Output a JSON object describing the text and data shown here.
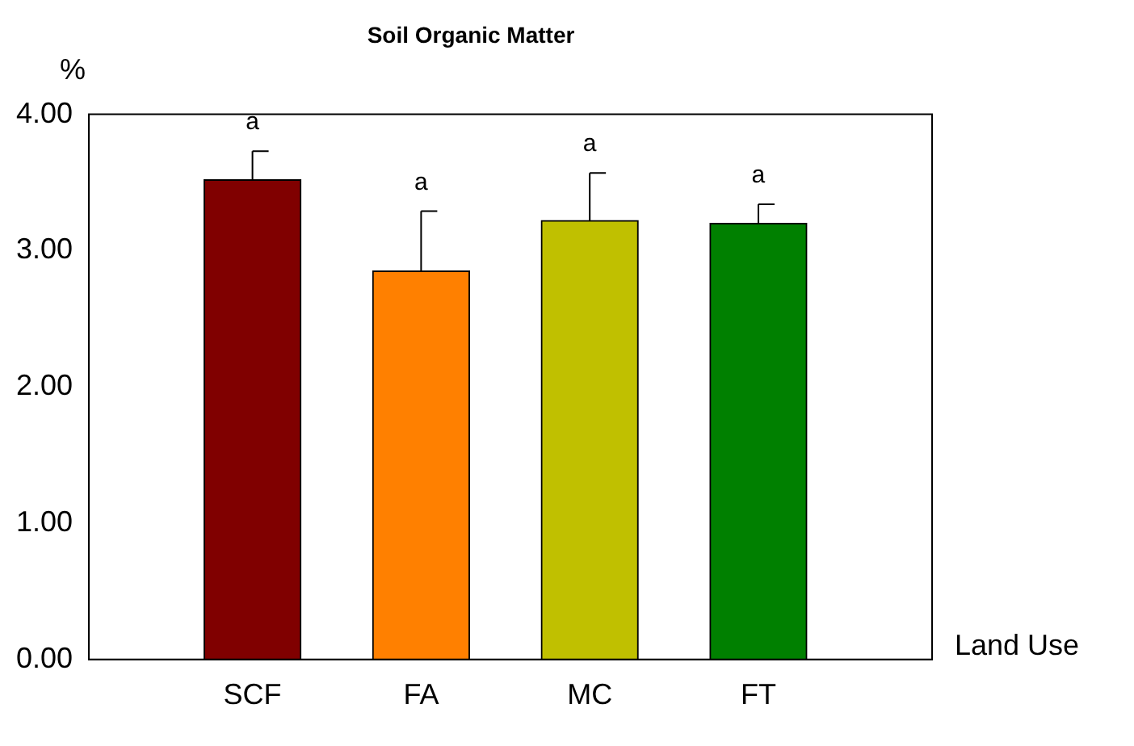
{
  "chart_data": {
    "type": "bar",
    "title": "Soil Organic Matter",
    "xlabel": "Land Use",
    "ylabel": "%",
    "categories": [
      "SCF",
      "FA",
      "MC",
      "FT"
    ],
    "values": [
      3.52,
      2.85,
      3.22,
      3.2
    ],
    "colors": [
      "#800000",
      "#ff8000",
      "#c0c000",
      "#008000"
    ],
    "errors": [
      0.21,
      0.44,
      0.35,
      0.14
    ],
    "ylim": [
      0,
      4
    ],
    "yticks": [
      {
        "value": 0,
        "label": "0.00"
      },
      {
        "value": 1,
        "label": "1.00"
      },
      {
        "value": 2,
        "label": "2.00"
      },
      {
        "value": 3,
        "label": "3.00"
      },
      {
        "value": 4,
        "label": "4.00"
      }
    ],
    "annotations": [
      "a",
      "a",
      "a",
      "a"
    ],
    "grid": false,
    "legend": false
  }
}
